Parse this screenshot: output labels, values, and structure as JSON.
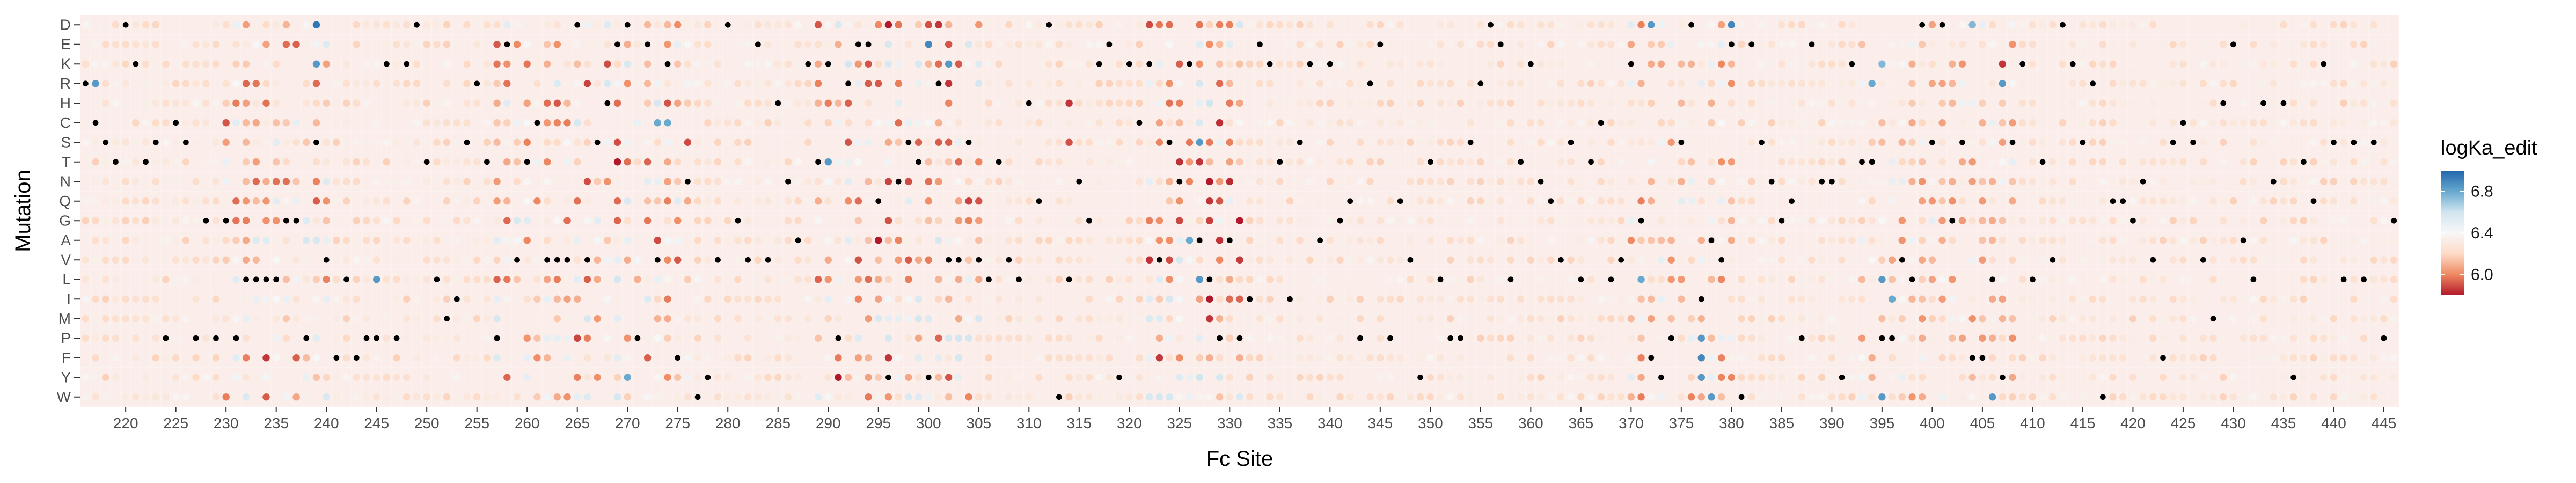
{
  "chart_data": {
    "type": "heatmap",
    "title": "",
    "xlabel": "Fc Site",
    "ylabel": "Mutation",
    "x_range": [
      216,
      446
    ],
    "x_ticks": [
      220,
      225,
      230,
      235,
      240,
      245,
      250,
      255,
      260,
      265,
      270,
      275,
      280,
      285,
      290,
      295,
      300,
      305,
      310,
      315,
      320,
      325,
      330,
      335,
      340,
      345,
      350,
      355,
      360,
      365,
      370,
      375,
      380,
      385,
      390,
      395,
      400,
      405,
      410,
      415,
      420,
      425,
      430,
      435,
      440,
      445
    ],
    "mutations": [
      "D",
      "E",
      "K",
      "R",
      "H",
      "C",
      "S",
      "T",
      "N",
      "Q",
      "G",
      "A",
      "V",
      "L",
      "I",
      "M",
      "P",
      "F",
      "Y",
      "W"
    ],
    "legend": {
      "title": "logKa_edit",
      "ticks": [
        6.8,
        6.4,
        6.0
      ],
      "range": [
        5.8,
        7.0
      ],
      "colors": [
        "#b2182b",
        "#ef8a62",
        "#fddbc7",
        "#f7f7f7",
        "#d1e5f0",
        "#67a9cf",
        "#2166ac"
      ],
      "placement": "right"
    },
    "grid": true,
    "background_tile_color": "#fbeeea",
    "wildtype_marker_color": "#000000",
    "wildtype_residue_by_site": {
      "216": "R",
      "217": "C",
      "218": "S",
      "219": "T",
      "220": "D",
      "221": "K",
      "222": "T",
      "223": "S",
      "224": "P",
      "225": "C",
      "226": "S",
      "227": "P",
      "228": "G",
      "229": "P",
      "230": "G",
      "231": "P",
      "232": "L",
      "233": "L",
      "234": "L",
      "235": "L",
      "236": "G",
      "237": "G",
      "238": "P",
      "239": "S",
      "240": "V",
      "241": "F",
      "242": "L",
      "243": "F",
      "244": "P",
      "245": "P",
      "246": "K",
      "247": "P",
      "248": "K",
      "249": "D",
      "250": "T",
      "251": "L",
      "252": "M",
      "253": "I",
      "254": "S",
      "255": "R",
      "256": "T",
      "257": "P",
      "258": "E",
      "259": "V",
      "260": "T",
      "261": "C",
      "262": "V",
      "263": "V",
      "264": "V",
      "265": "D",
      "266": "V",
      "267": "S",
      "268": "H",
      "269": "E",
      "270": "D",
      "271": "P",
      "272": "E",
      "273": "V",
      "274": "K",
      "275": "F",
      "276": "N",
      "277": "W",
      "278": "Y",
      "279": "V",
      "280": "D",
      "281": "G",
      "282": "V",
      "283": "E",
      "284": "V",
      "285": "H",
      "286": "N",
      "287": "A",
      "288": "K",
      "289": "T",
      "290": "K",
      "291": "P",
      "292": "R",
      "293": "E",
      "294": "E",
      "295": "Q",
      "296": "Y",
      "297": "N",
      "298": "S",
      "299": "T",
      "300": "Y",
      "301": "R",
      "302": "V",
      "303": "V",
      "304": "S",
      "305": "V",
      "306": "L",
      "307": "T",
      "308": "V",
      "309": "L",
      "310": "H",
      "311": "Q",
      "312": "D",
      "313": "W",
      "314": "L",
      "315": "N",
      "316": "G",
      "317": "K",
      "318": "E",
      "319": "Y",
      "320": "K",
      "321": "C",
      "322": "K",
      "323": "V",
      "324": "S",
      "325": "N",
      "326": "K",
      "327": "A",
      "328": "L",
      "329": "P",
      "330": "A",
      "331": "P",
      "332": "I",
      "333": "E",
      "334": "K",
      "335": "T",
      "336": "I",
      "337": "S",
      "338": "K",
      "339": "A",
      "340": "K",
      "341": "G",
      "342": "Q",
      "343": "P",
      "344": "R",
      "345": "E",
      "346": "P",
      "347": "Q",
      "348": "V",
      "349": "Y",
      "350": "T",
      "351": "L",
      "352": "P",
      "353": "P",
      "354": "S",
      "355": "R",
      "356": "D",
      "357": "E",
      "358": "L",
      "359": "T",
      "360": "K",
      "361": "N",
      "362": "Q",
      "363": "V",
      "364": "S",
      "365": "L",
      "366": "T",
      "367": "C",
      "368": "L",
      "369": "V",
      "370": "K",
      "371": "G",
      "372": "F",
      "373": "Y",
      "374": "P",
      "375": "S",
      "376": "D",
      "377": "I",
      "378": "A",
      "379": "V",
      "380": "E",
      "381": "W",
      "382": "E",
      "383": "S",
      "384": "N",
      "385": "G",
      "386": "Q",
      "387": "P",
      "388": "E",
      "389": "N",
      "390": "N",
      "391": "Y",
      "392": "K",
      "393": "T",
      "394": "T",
      "395": "P",
      "396": "P",
      "397": "V",
      "398": "L",
      "399": "D",
      "400": "S",
      "401": "D",
      "402": "G",
      "403": "S",
      "404": "F",
      "405": "F",
      "406": "L",
      "407": "Y",
      "408": "S",
      "409": "K",
      "410": "L",
      "411": "T",
      "412": "V",
      "413": "D",
      "414": "K",
      "415": "S",
      "416": "R",
      "417": "W",
      "418": "Q",
      "419": "Q",
      "420": "G",
      "421": "N",
      "422": "V",
      "423": "F",
      "424": "S",
      "425": "C",
      "426": "S",
      "427": "V",
      "428": "M",
      "429": "H",
      "430": "E",
      "431": "A",
      "432": "L",
      "433": "H",
      "434": "N",
      "435": "H",
      "436": "Y",
      "437": "T",
      "438": "Q",
      "439": "K",
      "440": "S",
      "441": "L",
      "442": "S",
      "443": "L",
      "444": "S",
      "445": "P",
      "446": "G"
    },
    "notable_cells": [
      {
        "site": 239,
        "mutation": "D",
        "logKa": 6.95
      },
      {
        "site": 296,
        "mutation": "D",
        "logKa": 5.8
      },
      {
        "site": 300,
        "mutation": "D",
        "logKa": 5.9
      },
      {
        "site": 300,
        "mutation": "E",
        "logKa": 6.9
      },
      {
        "site": 301,
        "mutation": "D",
        "logKa": 5.85
      },
      {
        "site": 324,
        "mutation": "D",
        "logKa": 5.95
      },
      {
        "site": 372,
        "mutation": "D",
        "logKa": 6.85
      },
      {
        "site": 380,
        "mutation": "D",
        "logKa": 6.9
      },
      {
        "site": 404,
        "mutation": "D",
        "logKa": 6.75
      },
      {
        "site": 302,
        "mutation": "K",
        "logKa": 6.85
      },
      {
        "site": 302,
        "mutation": "R",
        "logKa": 5.85
      },
      {
        "site": 217,
        "mutation": "R",
        "logKa": 6.85
      },
      {
        "site": 239,
        "mutation": "K",
        "logKa": 6.85
      },
      {
        "site": 395,
        "mutation": "K",
        "logKa": 6.75
      },
      {
        "site": 394,
        "mutation": "R",
        "logKa": 6.8
      },
      {
        "site": 407,
        "mutation": "K",
        "logKa": 5.85
      },
      {
        "site": 407,
        "mutation": "R",
        "logKa": 6.85
      },
      {
        "site": 314,
        "mutation": "H",
        "logKa": 5.85
      },
      {
        "site": 314,
        "mutation": "S",
        "logKa": 5.9
      },
      {
        "site": 273,
        "mutation": "C",
        "logKa": 6.8
      },
      {
        "site": 274,
        "mutation": "C",
        "logKa": 6.8
      },
      {
        "site": 239,
        "mutation": "S",
        "logKa": 5.85
      },
      {
        "site": 269,
        "mutation": "T",
        "logKa": 5.8
      },
      {
        "site": 270,
        "mutation": "T",
        "logKa": 5.95
      },
      {
        "site": 290,
        "mutation": "T",
        "logKa": 6.85
      },
      {
        "site": 327,
        "mutation": "S",
        "logKa": 6.85
      },
      {
        "site": 327,
        "mutation": "T",
        "logKa": 5.85
      },
      {
        "site": 328,
        "mutation": "N",
        "logKa": 5.8
      },
      {
        "site": 328,
        "mutation": "Q",
        "logKa": 5.85
      },
      {
        "site": 331,
        "mutation": "G",
        "logKa": 5.8
      },
      {
        "site": 295,
        "mutation": "A",
        "logKa": 5.8
      },
      {
        "site": 326,
        "mutation": "A",
        "logKa": 6.8
      },
      {
        "site": 232,
        "mutation": "L",
        "logKa": 5.85
      },
      {
        "site": 245,
        "mutation": "L",
        "logKa": 6.85
      },
      {
        "site": 327,
        "mutation": "L",
        "logKa": 6.85
      },
      {
        "site": 328,
        "mutation": "L",
        "logKa": 5.85
      },
      {
        "site": 328,
        "mutation": "I",
        "logKa": 5.8
      },
      {
        "site": 328,
        "mutation": "M",
        "logKa": 5.85
      },
      {
        "site": 371,
        "mutation": "L",
        "logKa": 6.8
      },
      {
        "site": 395,
        "mutation": "L",
        "logKa": 6.85
      },
      {
        "site": 396,
        "mutation": "I",
        "logKa": 6.8
      },
      {
        "site": 377,
        "mutation": "P",
        "logKa": 6.85
      },
      {
        "site": 377,
        "mutation": "F",
        "logKa": 6.9
      },
      {
        "site": 377,
        "mutation": "Y",
        "logKa": 6.85
      },
      {
        "site": 378,
        "mutation": "W",
        "logKa": 6.85
      },
      {
        "site": 405,
        "mutation": "F",
        "logKa": 6.85
      },
      {
        "site": 406,
        "mutation": "W",
        "logKa": 6.85
      },
      {
        "site": 395,
        "mutation": "W",
        "logKa": 6.85
      },
      {
        "site": 234,
        "mutation": "F",
        "logKa": 5.85
      },
      {
        "site": 291,
        "mutation": "Y",
        "logKa": 5.8
      },
      {
        "site": 296,
        "mutation": "F",
        "logKa": 5.85
      },
      {
        "site": 300,
        "mutation": "Y",
        "logKa": 5.9
      },
      {
        "site": 270,
        "mutation": "Y",
        "logKa": 6.8
      }
    ]
  }
}
